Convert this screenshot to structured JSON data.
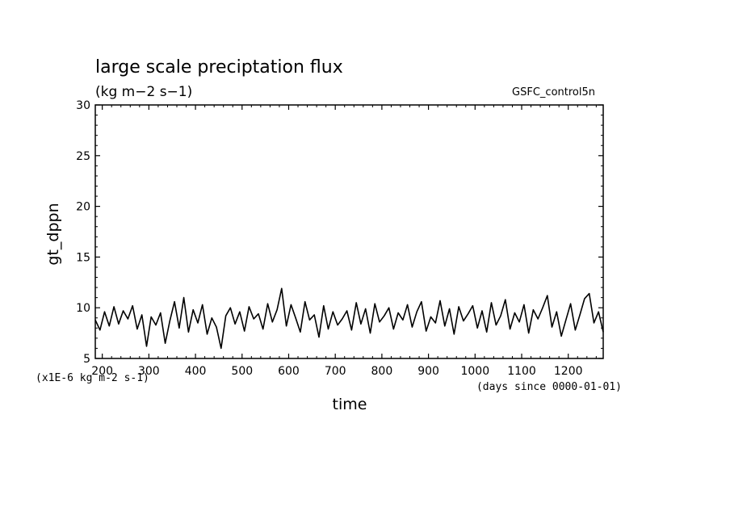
{
  "chart_data": {
    "type": "line",
    "title": "large scale preciptation flux",
    "subtitle": "(kg m−2 s−1)",
    "run_label": "GSFC_control5n",
    "xlabel": "time",
    "ylabel": "gt_dppn",
    "x_unit_note": "(days since 0000-01-01)",
    "y_unit_note": "(x1E-6 kg m-2 s-1)",
    "xlim": [
      185,
      1275
    ],
    "ylim": [
      5,
      30
    ],
    "x_ticks": [
      200,
      300,
      400,
      500,
      600,
      700,
      800,
      900,
      1000,
      1100,
      1200
    ],
    "x_tick_labels": [
      "200",
      "300",
      "400",
      "500",
      "600",
      "700",
      "800",
      "900",
      "1000",
      "1100",
      "1200"
    ],
    "y_ticks": [
      5,
      10,
      15,
      20,
      25,
      30
    ],
    "y_tick_labels": [
      "5",
      "10",
      "15",
      "20",
      "25",
      "30"
    ],
    "grid": false,
    "color": "#000000",
    "series": [
      {
        "x": [
          185,
          195,
          205,
          215,
          225,
          235,
          245,
          255,
          265,
          275,
          285,
          295,
          305,
          315,
          325,
          335,
          345,
          355,
          365,
          375,
          385,
          395,
          405,
          415,
          425,
          435,
          445,
          455,
          465,
          475,
          485,
          495,
          505,
          515,
          525,
          535,
          545,
          555,
          565,
          575,
          585,
          595,
          605,
          615,
          625,
          635,
          645,
          655,
          665,
          675,
          685,
          695,
          705,
          715,
          725,
          735,
          745,
          755,
          765,
          775,
          785,
          795,
          805,
          815,
          825,
          835,
          845,
          855,
          865,
          875,
          885,
          895,
          905,
          915,
          925,
          935,
          945,
          955,
          965,
          975,
          985,
          995,
          1005,
          1015,
          1025,
          1035,
          1045,
          1055,
          1065,
          1075,
          1085,
          1095,
          1105,
          1115,
          1125,
          1135,
          1145,
          1155,
          1165,
          1175,
          1185,
          1195,
          1205,
          1215,
          1225,
          1235,
          1245,
          1255,
          1265,
          1275
        ],
        "y": [
          8.8,
          7.8,
          9.6,
          8.2,
          10.1,
          8.4,
          9.7,
          8.9,
          10.2,
          7.9,
          9.3,
          6.2,
          9.1,
          8.3,
          9.5,
          6.5,
          8.7,
          10.6,
          8.0,
          11.0,
          7.6,
          9.8,
          8.5,
          10.3,
          7.4,
          9.0,
          8.1,
          6.0,
          9.2,
          10.0,
          8.4,
          9.6,
          7.7,
          10.1,
          8.9,
          9.4,
          7.9,
          10.4,
          8.6,
          9.8,
          11.9,
          8.2,
          10.3,
          9.0,
          7.6,
          10.6,
          8.8,
          9.3,
          7.1,
          10.2,
          7.9,
          9.6,
          8.3,
          8.9,
          9.7,
          7.8,
          10.5,
          8.4,
          9.9,
          7.5,
          10.4,
          8.6,
          9.2,
          10.0,
          7.9,
          9.5,
          8.8,
          10.3,
          8.1,
          9.6,
          10.6,
          7.7,
          9.1,
          8.5,
          10.7,
          8.2,
          9.9,
          7.4,
          10.1,
          8.7,
          9.4,
          10.2,
          8.0,
          9.7,
          7.6,
          10.5,
          8.3,
          9.2,
          10.8,
          7.9,
          9.5,
          8.6,
          10.3,
          7.5,
          9.8,
          8.9,
          10.0,
          11.2,
          8.1,
          9.6,
          7.2,
          8.8,
          10.4,
          7.8,
          9.3,
          10.9,
          11.4,
          8.5,
          9.6,
          7.6
        ]
      }
    ]
  }
}
